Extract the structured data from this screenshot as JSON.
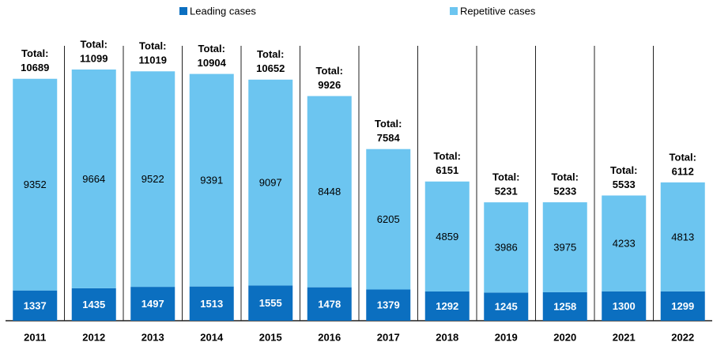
{
  "chart_data": {
    "type": "stacked_bar",
    "categories": [
      "2011",
      "2012",
      "2013",
      "2014",
      "2015",
      "2016",
      "2017",
      "2018",
      "2019",
      "2020",
      "2021",
      "2022"
    ],
    "series": [
      {
        "name": "Leading cases",
        "color": "#0b6fc0",
        "values": [
          1337,
          1435,
          1497,
          1513,
          1555,
          1478,
          1379,
          1292,
          1245,
          1258,
          1300,
          1299
        ]
      },
      {
        "name": "Repetitive cases",
        "color": "#6cc5f0",
        "values": [
          9352,
          9664,
          9522,
          9391,
          9097,
          8448,
          6205,
          4859,
          3986,
          3975,
          4233,
          4813
        ]
      }
    ],
    "total_label": "Total:",
    "totals": [
      10689,
      11099,
      11019,
      10904,
      10652,
      9926,
      7584,
      6151,
      5231,
      5233,
      5533,
      6112
    ],
    "legend": "top"
  }
}
